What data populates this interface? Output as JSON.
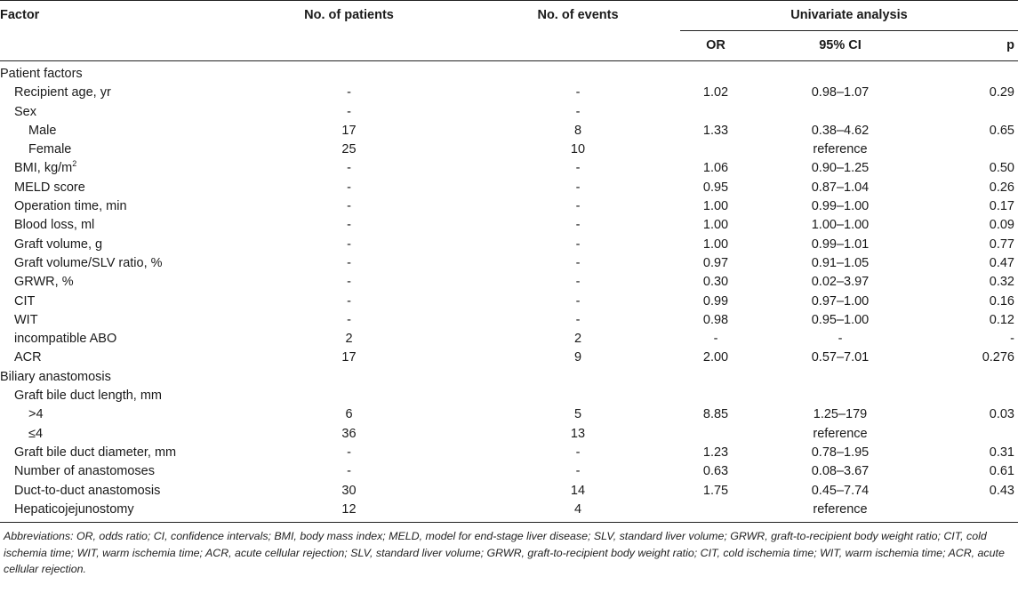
{
  "headers": {
    "factor": "Factor",
    "patients": "No. of patients",
    "events": "No. of events",
    "univariate": "Univariate analysis",
    "or": "OR",
    "ci": "95% CI",
    "p": "p"
  },
  "rows": [
    {
      "factor": "Patient factors",
      "patients": "",
      "events": "",
      "or": "",
      "ci": "",
      "p": ""
    },
    {
      "factor": "Recipient age, yr",
      "patients": "-",
      "events": "-",
      "or": "1.02",
      "ci": "0.98–1.07",
      "p": "0.29"
    },
    {
      "factor": "Sex",
      "patients": "-",
      "events": "-",
      "or": "",
      "ci": "",
      "p": ""
    },
    {
      "factor": "Male",
      "patients": "17",
      "events": "8",
      "or": "1.33",
      "ci": "0.38–4.62",
      "p": "0.65"
    },
    {
      "factor": "Female",
      "patients": "25",
      "events": "10",
      "or": "",
      "ci": "reference",
      "p": ""
    },
    {
      "factor": "BMI, kg/m",
      "factor_sup": "2",
      "patients": "-",
      "events": "-",
      "or": "1.06",
      "ci": "0.90–1.25",
      "p": "0.50"
    },
    {
      "factor": "MELD score",
      "patients": "-",
      "events": "-",
      "or": "0.95",
      "ci": "0.87–1.04",
      "p": "0.26"
    },
    {
      "factor": "Operation time, min",
      "patients": "-",
      "events": "-",
      "or": "1.00",
      "ci": "0.99–1.00",
      "p": "0.17"
    },
    {
      "factor": "Blood loss, ml",
      "patients": "-",
      "events": "-",
      "or": "1.00",
      "ci": "1.00–1.00",
      "p": "0.09"
    },
    {
      "factor": "Graft volume, g",
      "patients": "-",
      "events": "-",
      "or": "1.00",
      "ci": "0.99–1.01",
      "p": "0.77"
    },
    {
      "factor": "Graft volume/SLV ratio, %",
      "patients": "-",
      "events": "-",
      "or": "0.97",
      "ci": "0.91–1.05",
      "p": "0.47"
    },
    {
      "factor": "GRWR, %",
      "patients": "-",
      "events": "-",
      "or": "0.30",
      "ci": "0.02–3.97",
      "p": "0.32"
    },
    {
      "factor": "CIT",
      "patients": "-",
      "events": "-",
      "or": "0.99",
      "ci": "0.97–1.00",
      "p": "0.16"
    },
    {
      "factor": "WIT",
      "patients": "-",
      "events": "-",
      "or": "0.98",
      "ci": "0.95–1.00",
      "p": "0.12"
    },
    {
      "factor": "incompatible ABO",
      "patients": "2",
      "events": "2",
      "or": "-",
      "ci": "-",
      "p": "-"
    },
    {
      "factor": "ACR",
      "patients": "17",
      "events": "9",
      "or": "2.00",
      "ci": "0.57–7.01",
      "p": "0.276"
    },
    {
      "factor": "Biliary anastomosis",
      "patients": "",
      "events": "",
      "or": "",
      "ci": "",
      "p": ""
    },
    {
      "factor": "Graft bile duct length, mm",
      "patients": "",
      "events": "",
      "or": "",
      "ci": "",
      "p": ""
    },
    {
      "factor": ">4",
      "patients": "6",
      "events": "5",
      "or": "8.85",
      "ci": "1.25–179",
      "p": "0.03"
    },
    {
      "factor": "≤4",
      "patients": "36",
      "events": "13",
      "or": "",
      "ci": "reference",
      "p": ""
    },
    {
      "factor": "Graft bile duct diameter, mm",
      "patients": "-",
      "events": "-",
      "or": "1.23",
      "ci": "0.78–1.95",
      "p": "0.31"
    },
    {
      "factor": "Number of anastomoses",
      "patients": "-",
      "events": "-",
      "or": "0.63",
      "ci": "0.08–3.67",
      "p": "0.61"
    },
    {
      "factor": "Duct-to-duct anastomosis",
      "patients": "30",
      "events": "14",
      "or": "1.75",
      "ci": "0.45–7.74",
      "p": "0.43"
    },
    {
      "factor": "Hepaticojejunostomy",
      "patients": "12",
      "events": "4",
      "or": "",
      "ci": "reference",
      "p": ""
    }
  ],
  "footnote": "Abbreviations: OR, odds ratio; CI, confidence intervals; BMI, body mass index; MELD, model for end-stage liver disease; SLV, standard liver volume; GRWR, graft-to-recipient body weight ratio; CIT, cold ischemia time; WIT, warm ischemia time; ACR, acute cellular rejection; SLV, standard liver volume; GRWR, graft-to-recipient body weight ratio; CIT, cold ischemia time; WIT, warm ischemia time; ACR, acute cellular rejection."
}
